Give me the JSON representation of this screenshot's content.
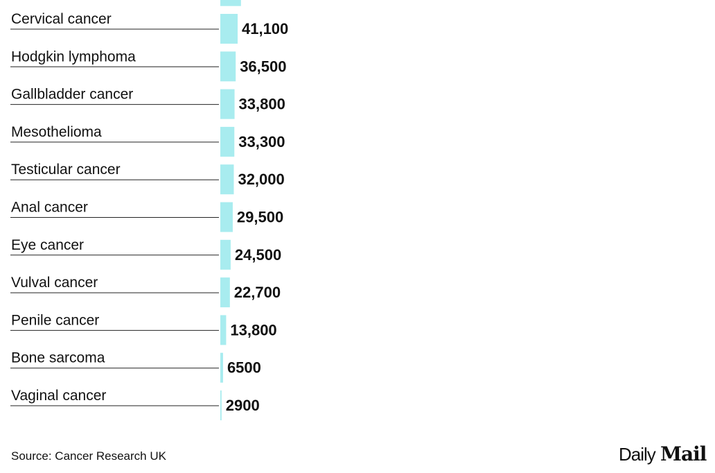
{
  "chart_data": {
    "type": "hbar",
    "categories": [
      null,
      "Cervical cancer",
      "Hodgkin lymphoma",
      "Gallbladder cancer",
      "Mesothelioma",
      "Testicular cancer",
      "Anal cancer",
      "Eye cancer",
      "Vulval cancer",
      "Penile cancer",
      "Bone sarcoma",
      "Vaginal cancer"
    ],
    "values": [
      49000,
      41100,
      36500,
      33800,
      33300,
      32000,
      29500,
      24500,
      22700,
      13800,
      6500,
      2900
    ],
    "value_labels": [
      null,
      "41,100",
      "36,500",
      "33,800",
      "33,300",
      "32,000",
      "29,500",
      "24,500",
      "22,700",
      "13,800",
      "6500",
      "2900"
    ],
    "color": "#a8ecef",
    "xlim": [
      0,
      100000
    ],
    "source": "Source: Cancer Research UK",
    "logo": {
      "first": "Daily",
      "second": "Mail"
    }
  }
}
